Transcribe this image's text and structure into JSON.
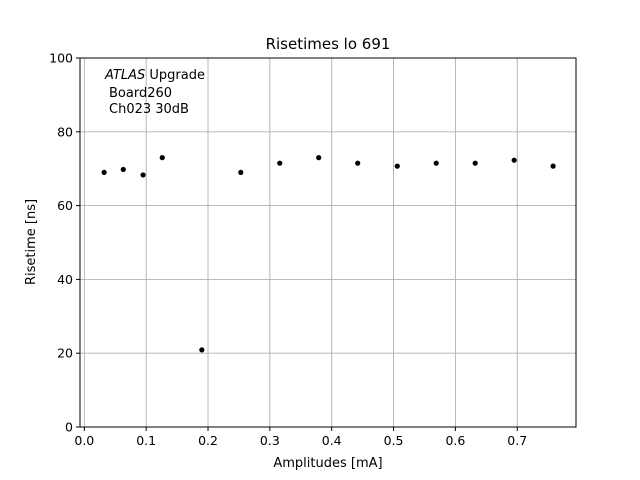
{
  "chart_data": {
    "type": "scatter",
    "title": "Risetimes lo 691",
    "xlabel": "Amplitudes [mA]",
    "ylabel": "Risetime [ns]",
    "xlim": [
      -0.007,
      0.795
    ],
    "ylim": [
      0,
      100
    ],
    "xticks": [
      0.0,
      0.1,
      0.2,
      0.3,
      0.4,
      0.5,
      0.6,
      0.7
    ],
    "xtick_labels": [
      "0.0",
      "0.1",
      "0.2",
      "0.3",
      "0.4",
      "0.5",
      "0.6",
      "0.7"
    ],
    "yticks": [
      0,
      20,
      40,
      60,
      80,
      100
    ],
    "ytick_labels": [
      "0",
      "20",
      "40",
      "60",
      "80",
      "100"
    ],
    "grid": true,
    "marker_color": "#000000",
    "grid_color": "#b0b0b0",
    "annotation": {
      "line1_italic": "ATLAS",
      "line1_rest": " Upgrade",
      "line2": "Board260",
      "line3": "Ch023 30dB"
    },
    "x": [
      0.032,
      0.063,
      0.095,
      0.126,
      0.19,
      0.253,
      0.316,
      0.379,
      0.442,
      0.506,
      0.569,
      0.632,
      0.695,
      0.758
    ],
    "y": [
      69.0,
      69.8,
      68.3,
      73.0,
      20.9,
      69.0,
      71.5,
      73.0,
      71.5,
      70.7,
      71.5,
      71.5,
      72.3,
      70.7
    ]
  }
}
